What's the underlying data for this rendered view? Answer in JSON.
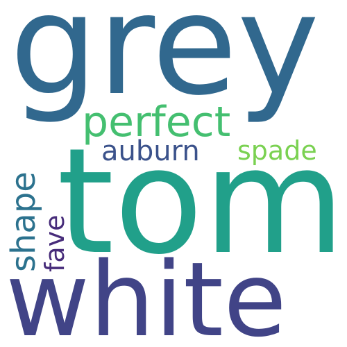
{
  "words": [
    {
      "text": "grey",
      "color": "#31688e"
    },
    {
      "text": "tom",
      "color": "#21a08a"
    },
    {
      "text": "white",
      "color": "#414487"
    },
    {
      "text": "perfect",
      "color": "#44bf70"
    },
    {
      "text": "auburn",
      "color": "#3b528b"
    },
    {
      "text": "spade",
      "color": "#7ad151"
    },
    {
      "text": "shape",
      "color": "#2c728e"
    },
    {
      "text": "fave",
      "color": "#472c7a"
    }
  ]
}
